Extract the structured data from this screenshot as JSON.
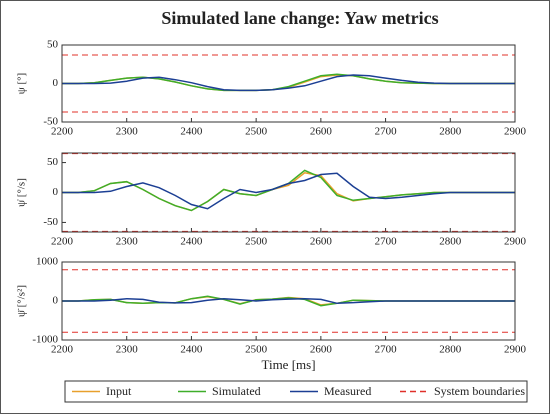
{
  "chart_data": [
    {
      "type": "line",
      "title": "Simulated lane change: Yaw metrics",
      "ylabel": "ψ [°]",
      "x": [
        2200,
        2225,
        2250,
        2275,
        2300,
        2325,
        2350,
        2375,
        2400,
        2425,
        2450,
        2475,
        2500,
        2525,
        2550,
        2575,
        2600,
        2625,
        2650,
        2675,
        2700,
        2725,
        2750,
        2775,
        2800,
        2825,
        2850,
        2875,
        2900
      ],
      "xlim": [
        2200,
        2900
      ],
      "xticks": [
        2200,
        2300,
        2400,
        2500,
        2600,
        2700,
        2800,
        2900
      ],
      "ylim": [
        -50,
        50
      ],
      "yticks": [
        -50,
        0,
        50
      ],
      "series": [
        {
          "name": "Input",
          "color": "#e8a02c",
          "values": [
            0,
            0,
            1,
            4,
            7,
            8,
            6,
            2,
            -3,
            -7,
            -9,
            -9,
            -9,
            -8,
            -5,
            2,
            9,
            11,
            10,
            6,
            3,
            1,
            0.5,
            0,
            0,
            0,
            0,
            0,
            0
          ]
        },
        {
          "name": "Simulated",
          "color": "#3fae2a",
          "values": [
            0,
            0,
            1,
            4,
            7,
            8,
            6,
            2,
            -3,
            -7,
            -9,
            -9,
            -9,
            -8,
            -4,
            3,
            10,
            12,
            10,
            6,
            3,
            1,
            0.5,
            0,
            0,
            0,
            0,
            0,
            0
          ]
        },
        {
          "name": "Measured",
          "color": "#1c3f94",
          "values": [
            0,
            0,
            0,
            0.5,
            3,
            7,
            8,
            5,
            1,
            -4,
            -8,
            -9,
            -9,
            -8,
            -6,
            -3,
            3,
            9,
            11,
            10,
            7,
            4,
            1.5,
            0.5,
            0,
            0,
            0,
            0,
            0
          ]
        }
      ],
      "boundaries": {
        "name": "System boundaries",
        "color": "#e0302a",
        "values": [
          -37,
          37
        ]
      }
    },
    {
      "type": "line",
      "ylabel": "ψ̇ [°/s]",
      "x": [
        2200,
        2225,
        2250,
        2275,
        2300,
        2325,
        2350,
        2375,
        2400,
        2425,
        2450,
        2475,
        2500,
        2525,
        2550,
        2575,
        2600,
        2625,
        2650,
        2675,
        2700,
        2725,
        2750,
        2775,
        2800,
        2825,
        2850,
        2875,
        2900
      ],
      "xlim": [
        2200,
        2900
      ],
      "xticks": [
        2200,
        2300,
        2400,
        2500,
        2600,
        2700,
        2800,
        2900
      ],
      "ylim": [
        -66,
        66
      ],
      "yticks": [
        -50,
        0,
        50
      ],
      "series": [
        {
          "color": "#e8a02c",
          "values": [
            0,
            0,
            3,
            15,
            18,
            5,
            -10,
            -22,
            -30,
            -15,
            5,
            -2,
            -5,
            5,
            12,
            33,
            28,
            -2,
            -14,
            -10,
            -7,
            -4,
            -2,
            0,
            0,
            0,
            0,
            0,
            0
          ]
        },
        {
          "color": "#3fae2a",
          "values": [
            0,
            0,
            3,
            15,
            18,
            5,
            -10,
            -22,
            -30,
            -15,
            5,
            -2,
            -5,
            5,
            15,
            37,
            25,
            -5,
            -13,
            -10,
            -7,
            -4,
            -2,
            0,
            0,
            0,
            0,
            0,
            0
          ]
        },
        {
          "color": "#1c3f94",
          "values": [
            0,
            0,
            0,
            2,
            10,
            16,
            8,
            -5,
            -20,
            -27,
            -10,
            5,
            0,
            5,
            15,
            20,
            30,
            32,
            10,
            -8,
            -10,
            -8,
            -5,
            -2,
            0,
            0,
            0,
            0,
            0
          ]
        }
      ],
      "boundaries": {
        "color": "#e0302a",
        "values": [
          -65,
          65
        ]
      }
    },
    {
      "type": "line",
      "ylabel": "ψ̈ [°/s²]",
      "xlabel": "Time [ms]",
      "x": [
        2200,
        2225,
        2250,
        2275,
        2300,
        2325,
        2350,
        2375,
        2400,
        2425,
        2450,
        2475,
        2500,
        2525,
        2550,
        2575,
        2600,
        2625,
        2650,
        2675,
        2700,
        2725,
        2750,
        2775,
        2800,
        2825,
        2850,
        2875,
        2900
      ],
      "xlim": [
        2200,
        2900
      ],
      "xticks": [
        2200,
        2300,
        2400,
        2500,
        2600,
        2700,
        2800,
        2900
      ],
      "ylim": [
        -1000,
        1000
      ],
      "yticks": [
        -1000,
        0,
        1000
      ],
      "series": [
        {
          "color": "#e8a02c",
          "values": [
            0,
            0,
            30,
            40,
            -40,
            -60,
            -40,
            -50,
            60,
            110,
            40,
            -70,
            30,
            50,
            90,
            60,
            -100,
            -60,
            20,
            10,
            0,
            0,
            0,
            0,
            0,
            0,
            0,
            0,
            0
          ]
        },
        {
          "color": "#3fae2a",
          "values": [
            0,
            0,
            30,
            40,
            -40,
            -60,
            -40,
            -50,
            60,
            120,
            40,
            -80,
            30,
            50,
            80,
            40,
            -120,
            -60,
            20,
            10,
            0,
            0,
            0,
            0,
            0,
            0,
            0,
            0,
            0
          ]
        },
        {
          "color": "#1c3f94",
          "values": [
            0,
            0,
            0,
            20,
            60,
            40,
            -30,
            -50,
            -40,
            20,
            60,
            30,
            0,
            30,
            50,
            60,
            40,
            -60,
            -40,
            -20,
            0,
            0,
            0,
            0,
            0,
            0,
            0,
            0,
            0
          ]
        }
      ],
      "boundaries": {
        "color": "#e0302a",
        "values": [
          -800,
          800
        ]
      }
    }
  ]
}
